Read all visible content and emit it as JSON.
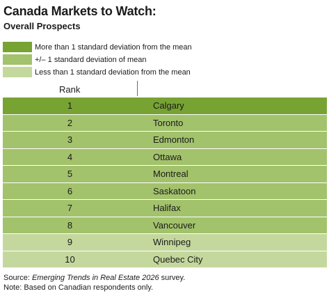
{
  "title": "Canada Markets to Watch:",
  "subtitle": "Overall Prospects",
  "colors": {
    "dark": "#77a333",
    "medium": "#a3c26c",
    "light": "#c4d89d"
  },
  "legend": [
    {
      "label": "More than 1 standard deviation from the mean",
      "tier": "dark"
    },
    {
      "label": "+/– 1 standard deviation of mean",
      "tier": "medium"
    },
    {
      "label": "Less than 1 standard deviation from the mean",
      "tier": "light"
    }
  ],
  "column_header": "Rank",
  "chart_data": {
    "type": "table",
    "title": "Canada Markets to Watch:",
    "subtitle": "Overall Prospects",
    "columns": [
      "Rank",
      ""
    ],
    "rows": [
      {
        "rank": "1",
        "city": "Calgary",
        "tier": "dark"
      },
      {
        "rank": "2",
        "city": "Toronto",
        "tier": "medium"
      },
      {
        "rank": "3",
        "city": "Edmonton",
        "tier": "medium"
      },
      {
        "rank": "4",
        "city": "Ottawa",
        "tier": "medium"
      },
      {
        "rank": "5",
        "city": "Montreal",
        "tier": "medium"
      },
      {
        "rank": "6",
        "city": "Saskatoon",
        "tier": "medium"
      },
      {
        "rank": "7",
        "city": "Halifax",
        "tier": "medium"
      },
      {
        "rank": "8",
        "city": "Vancouver",
        "tier": "medium"
      },
      {
        "rank": "9",
        "city": "Winnipeg",
        "tier": "light"
      },
      {
        "rank": "10",
        "city": "Quebec City",
        "tier": "light"
      }
    ]
  },
  "footnotes": {
    "source_prefix": "Source: ",
    "source_italic": "Emerging Trends in Real Estate 2026",
    "source_suffix": " survey.",
    "note": "Note: Based on Canadian respondents only."
  }
}
